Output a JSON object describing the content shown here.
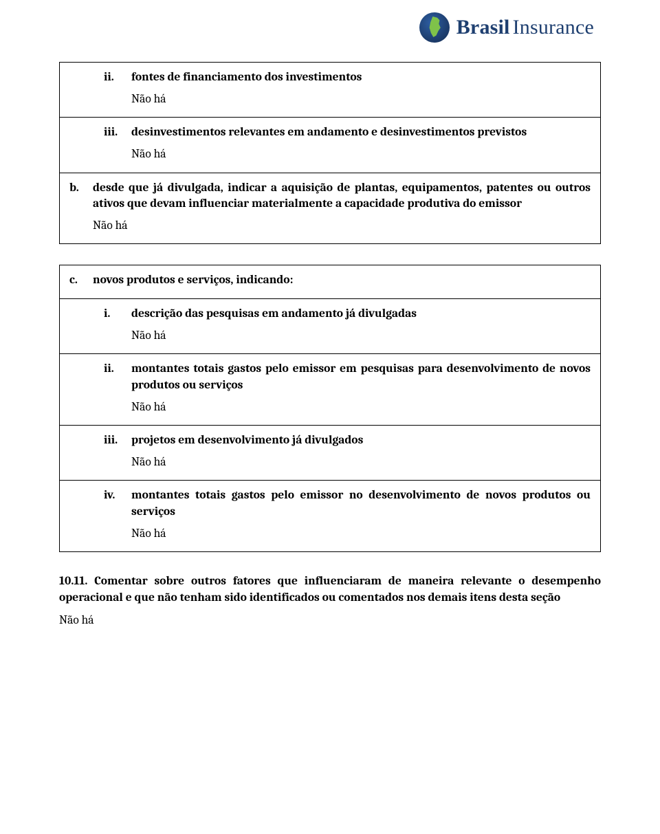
{
  "logo": {
    "word1": "Brasil",
    "word2": "Insurance"
  },
  "common": {
    "none": "Não há"
  },
  "rows": {
    "a_ii": {
      "marker": "ii.",
      "title": "fontes de financiamento dos investimentos"
    },
    "a_iii": {
      "marker": "iii.",
      "title": "desinvestimentos relevantes em andamento e desinvestimentos previstos"
    },
    "b": {
      "marker": "b.",
      "title": "desde que já divulgada, indicar a aquisição de plantas, equipamentos, patentes ou outros ativos que devam influenciar materialmente a capacidade produtiva do emissor"
    },
    "c": {
      "marker": "c.",
      "title": "novos produtos e serviços, indicando:"
    },
    "c_i": {
      "marker": "i.",
      "title": "descrição das pesquisas em andamento já divulgadas"
    },
    "c_ii": {
      "marker": "ii.",
      "title": "montantes totais gastos pelo emissor em pesquisas para desenvolvimento de novos produtos ou serviços"
    },
    "c_iii": {
      "marker": "iii.",
      "title": "projetos em desenvolvimento já divulgados"
    },
    "c_iv": {
      "marker": "iv.",
      "title": "montantes totais gastos pelo emissor no desenvolvimento de novos produtos ou serviços"
    }
  },
  "final": {
    "text": "10.11. Comentar sobre outros fatores que influenciaram de maneira relevante o desempenho operacional e que não tenham sido identificados ou comentados nos demais itens desta seção"
  }
}
